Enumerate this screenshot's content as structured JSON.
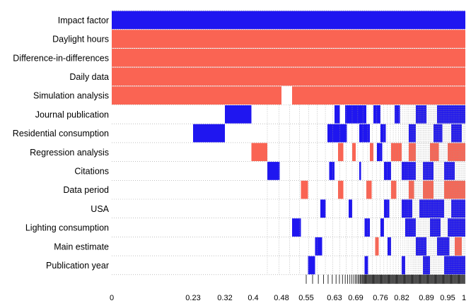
{
  "chart_data": {
    "type": "heatmap",
    "title": "",
    "xlabel": "",
    "ylabel": "",
    "x_ticks": [
      "0",
      "0.23",
      "0.32",
      "0.4",
      "0.48",
      "0.55",
      "0.63",
      "0.69",
      "0.76",
      "0.82",
      "0.89",
      "0.95",
      "1"
    ],
    "x_range": [
      0,
      1
    ],
    "rows": [
      "Impact factor",
      "Daylight hours",
      "Difference-in-differences",
      "Daily data",
      "Simulation analysis",
      "Journal publication",
      "Residential consumption",
      "Regression analysis",
      "Citations",
      "Data period",
      "USA",
      "Lighting consumption",
      "Main estimate",
      "Publication year"
    ],
    "legend": {
      "positive": "#1f16f0",
      "negative": "#fa6453",
      "excluded": "#ffffff"
    },
    "grid": true,
    "cells": [
      {
        "row": "Impact factor",
        "segments": [
          [
            0.0,
            1.0,
            "positive"
          ]
        ]
      },
      {
        "row": "Daylight hours",
        "segments": [
          [
            0.0,
            1.0,
            "negative"
          ]
        ]
      },
      {
        "row": "Difference-in-differences",
        "segments": [
          [
            0.0,
            1.0,
            "negative"
          ]
        ]
      },
      {
        "row": "Daily data",
        "segments": [
          [
            0.0,
            1.0,
            "negative"
          ]
        ]
      },
      {
        "row": "Simulation analysis",
        "segments": [
          [
            0.0,
            0.48,
            "negative"
          ],
          [
            0.51,
            1.0,
            "negative"
          ]
        ]
      },
      {
        "row": "Journal publication",
        "segments": [
          [
            0.32,
            0.395,
            "positive"
          ],
          [
            0.63,
            0.645,
            "positive"
          ],
          [
            0.66,
            0.72,
            "positive"
          ],
          [
            0.74,
            0.76,
            "positive"
          ],
          [
            0.8,
            0.815,
            "positive"
          ],
          [
            0.86,
            0.89,
            "positive"
          ],
          [
            0.92,
            1.0,
            "positive"
          ]
        ]
      },
      {
        "row": "Residential consumption",
        "segments": [
          [
            0.23,
            0.32,
            "positive"
          ],
          [
            0.61,
            0.665,
            "positive"
          ],
          [
            0.7,
            0.73,
            "positive"
          ],
          [
            0.76,
            0.775,
            "positive"
          ],
          [
            0.84,
            0.86,
            "positive"
          ],
          [
            0.91,
            0.935,
            "positive"
          ],
          [
            0.96,
            0.99,
            "positive"
          ]
        ]
      },
      {
        "row": "Regression analysis",
        "segments": [
          [
            0.395,
            0.44,
            "negative"
          ],
          [
            0.64,
            0.655,
            "negative"
          ],
          [
            0.68,
            0.69,
            "negative"
          ],
          [
            0.73,
            0.74,
            "negative"
          ],
          [
            0.75,
            0.765,
            "positive"
          ],
          [
            0.79,
            0.82,
            "negative"
          ],
          [
            0.84,
            0.86,
            "negative"
          ],
          [
            0.9,
            0.925,
            "negative"
          ],
          [
            0.95,
            1.0,
            "negative"
          ]
        ]
      },
      {
        "row": "Citations",
        "segments": [
          [
            0.44,
            0.475,
            "positive"
          ],
          [
            0.615,
            0.63,
            "positive"
          ],
          [
            0.7,
            0.705,
            "positive"
          ],
          [
            0.77,
            0.79,
            "positive"
          ],
          [
            0.82,
            0.86,
            "positive"
          ],
          [
            0.88,
            0.91,
            "positive"
          ],
          [
            0.94,
            0.97,
            "positive"
          ]
        ]
      },
      {
        "row": "Data period",
        "segments": [
          [
            0.535,
            0.555,
            "negative"
          ],
          [
            0.64,
            0.655,
            "negative"
          ],
          [
            0.72,
            0.735,
            "negative"
          ],
          [
            0.79,
            0.805,
            "negative"
          ],
          [
            0.84,
            0.855,
            "negative"
          ],
          [
            0.88,
            0.91,
            "negative"
          ],
          [
            0.94,
            1.0,
            "negative"
          ]
        ]
      },
      {
        "row": "USA",
        "segments": [
          [
            0.59,
            0.605,
            "positive"
          ],
          [
            0.67,
            0.68,
            "positive"
          ],
          [
            0.77,
            0.785,
            "positive"
          ],
          [
            0.82,
            0.85,
            "positive"
          ],
          [
            0.87,
            0.94,
            "positive"
          ],
          [
            0.96,
            1.0,
            "positive"
          ]
        ]
      },
      {
        "row": "Lighting consumption",
        "segments": [
          [
            0.51,
            0.535,
            "positive"
          ],
          [
            0.715,
            0.73,
            "positive"
          ],
          [
            0.76,
            0.77,
            "positive"
          ],
          [
            0.83,
            0.86,
            "positive"
          ],
          [
            0.9,
            0.93,
            "positive"
          ],
          [
            0.95,
            1.0,
            "positive"
          ]
        ]
      },
      {
        "row": "Main estimate",
        "segments": [
          [
            0.575,
            0.595,
            "positive"
          ],
          [
            0.745,
            0.755,
            "negative"
          ],
          [
            0.78,
            0.79,
            "positive"
          ],
          [
            0.86,
            0.89,
            "positive"
          ],
          [
            0.92,
            0.955,
            "positive"
          ],
          [
            0.97,
            0.99,
            "negative"
          ]
        ]
      },
      {
        "row": "Publication year",
        "segments": [
          [
            0.555,
            0.575,
            "positive"
          ],
          [
            0.715,
            0.725,
            "positive"
          ],
          [
            0.82,
            0.83,
            "positive"
          ],
          [
            0.88,
            0.9,
            "positive"
          ],
          [
            0.94,
            1.0,
            "positive"
          ]
        ]
      }
    ]
  }
}
